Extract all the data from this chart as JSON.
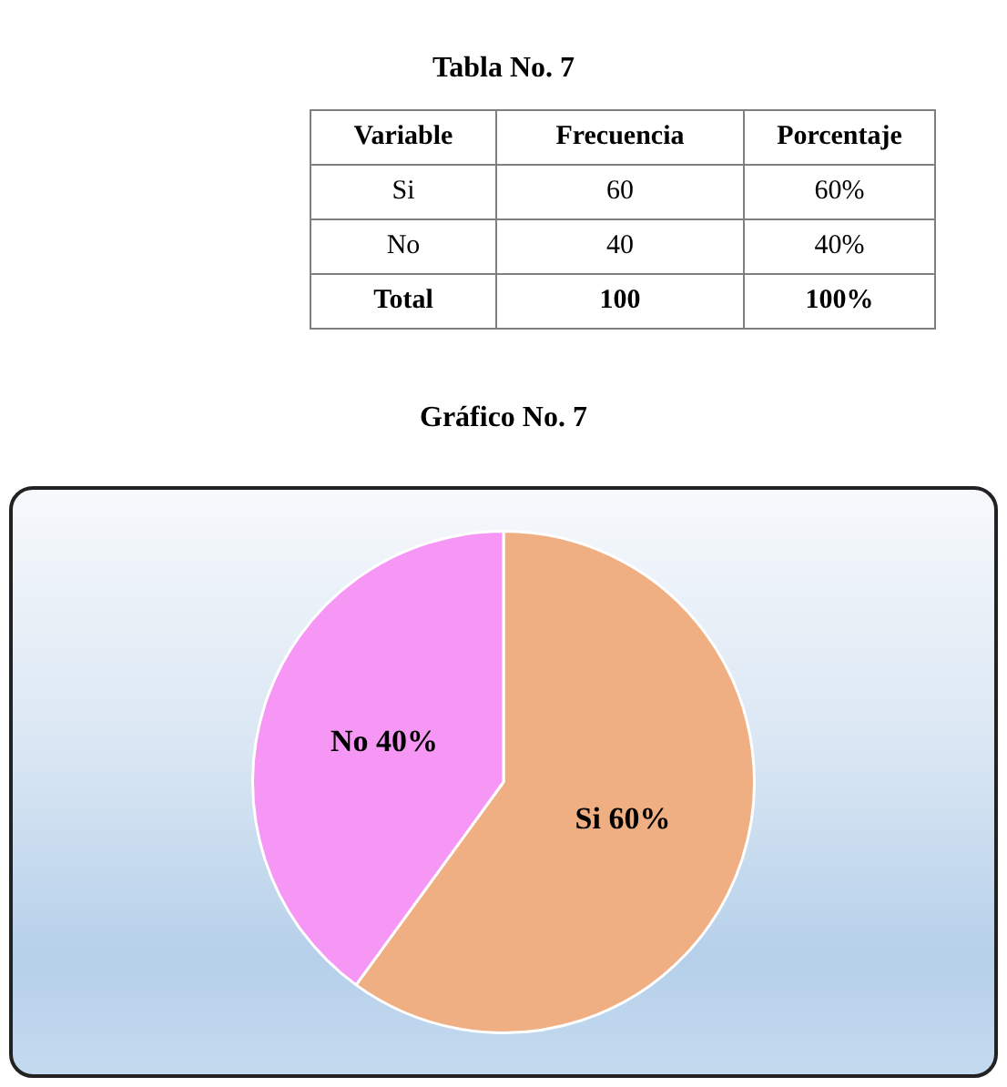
{
  "chart_data": [
    {
      "type": "other",
      "title": "Tabla No. 7",
      "annotations": [
        "Variable",
        "Frecuencia",
        "Porcentaje",
        "Si",
        "60",
        "60%",
        "No",
        "40",
        "40%",
        "Total",
        "100",
        "100%"
      ]
    },
    {
      "type": "pie",
      "title": "Gráfico No. 7",
      "categories": [
        "Si",
        "No"
      ],
      "values": [
        60,
        40
      ],
      "colors": [
        "#efaf82",
        "#f797f5"
      ],
      "value_labels": [
        "60%",
        "40%"
      ],
      "legend": false
    }
  ]
}
